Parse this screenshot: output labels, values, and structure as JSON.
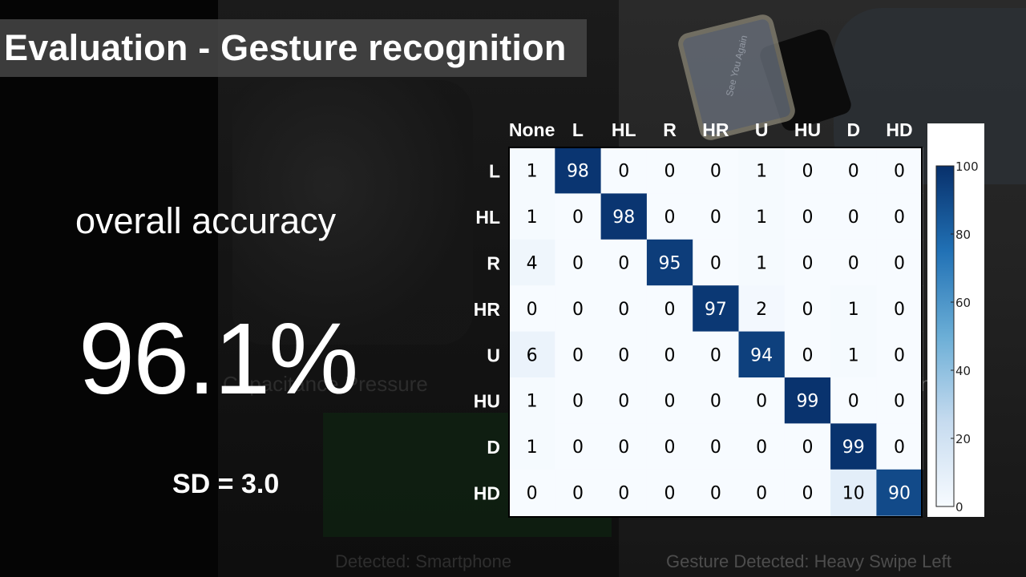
{
  "title": "Evaluation - Gesture recognition",
  "stats": {
    "label": "overall accuracy",
    "value": "96.1%",
    "sd": "SD = 3.0"
  },
  "background_text": {
    "caption_left": "Capacitance Pressure",
    "caption_right": "nce",
    "detected": "Detected: Smartphone",
    "gesture": "Gesture Detected: Heavy Swipe Left",
    "watch_label": "See You Again"
  },
  "colors": {
    "cmap_low": "#f7fbff",
    "cmap_high": "#08306b",
    "text_dark": "#000000",
    "text_light": "#ffffff"
  },
  "chart_data": {
    "type": "heatmap",
    "columns": [
      "None",
      "L",
      "HL",
      "R",
      "HR",
      "U",
      "HU",
      "D",
      "HD"
    ],
    "rows": [
      "L",
      "HL",
      "R",
      "HR",
      "U",
      "HU",
      "D",
      "HD"
    ],
    "values": [
      [
        1,
        98,
        0,
        0,
        0,
        1,
        0,
        0,
        0
      ],
      [
        1,
        0,
        98,
        0,
        0,
        1,
        0,
        0,
        0
      ],
      [
        4,
        0,
        0,
        95,
        0,
        1,
        0,
        0,
        0
      ],
      [
        0,
        0,
        0,
        0,
        97,
        2,
        0,
        1,
        0
      ],
      [
        6,
        0,
        0,
        0,
        0,
        94,
        0,
        1,
        0
      ],
      [
        1,
        0,
        0,
        0,
        0,
        0,
        99,
        0,
        0
      ],
      [
        1,
        0,
        0,
        0,
        0,
        0,
        0,
        99,
        0
      ],
      [
        0,
        0,
        0,
        0,
        0,
        0,
        0,
        10,
        90
      ]
    ],
    "colorbar": {
      "range": [
        0,
        100
      ],
      "ticks": [
        "0",
        "20",
        "40",
        "60",
        "80",
        "100"
      ]
    }
  }
}
